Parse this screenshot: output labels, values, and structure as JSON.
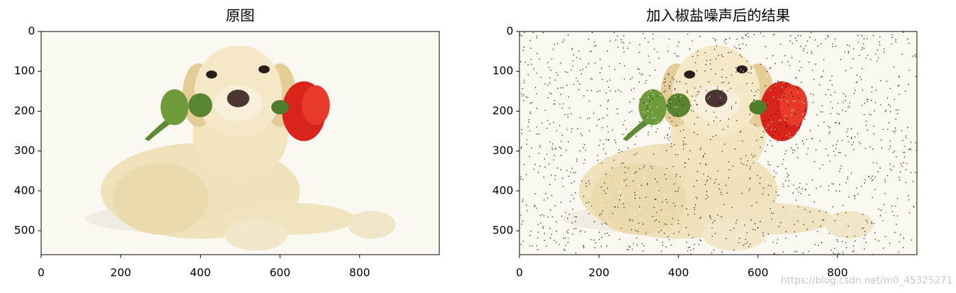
{
  "chart_data": [
    {
      "type": "image",
      "title": "原图",
      "xlim": [
        0,
        1000
      ],
      "ylim": [
        560,
        0
      ],
      "xticks": [
        0,
        200,
        400,
        600,
        800
      ],
      "yticks": [
        0,
        100,
        200,
        300,
        400,
        500
      ]
    },
    {
      "type": "image",
      "title": "加入椒盐噪声后的结果",
      "xlim": [
        0,
        1000
      ],
      "ylim": [
        560,
        0
      ],
      "xticks": [
        0,
        200,
        400,
        600,
        800
      ],
      "yticks": [
        0,
        100,
        200,
        300,
        400,
        500
      ]
    }
  ],
  "watermark": "https://blog.csdn.net/m0_45325271"
}
